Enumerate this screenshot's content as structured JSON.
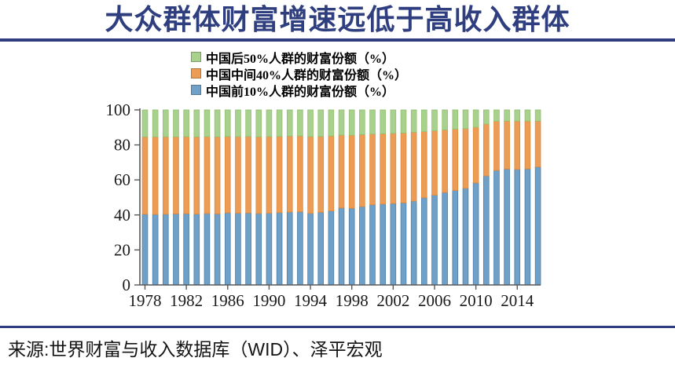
{
  "header": {
    "title": "大众群体财富增速远低于高收入群体",
    "accent_color": "#2F3E7E"
  },
  "footer": {
    "source": "来源:世界财富与收入数据库（WID）、泽平宏观"
  },
  "chart_data": {
    "type": "bar",
    "stacked": true,
    "unit": "%",
    "ylim": [
      0,
      100
    ],
    "yticks": [
      0,
      20,
      40,
      60,
      80,
      100
    ],
    "xticks": [
      1978,
      1982,
      1986,
      1990,
      1994,
      1998,
      2002,
      2006,
      2010,
      2014
    ],
    "grid": false,
    "legend_position": "top",
    "x": [
      1978,
      1979,
      1980,
      1981,
      1982,
      1983,
      1984,
      1985,
      1986,
      1987,
      1988,
      1989,
      1990,
      1991,
      1992,
      1993,
      1994,
      1995,
      1996,
      1997,
      1998,
      1999,
      2000,
      2001,
      2002,
      2003,
      2004,
      2005,
      2006,
      2007,
      2008,
      2009,
      2010,
      2011,
      2012,
      2013,
      2014,
      2015,
      2016
    ],
    "series": [
      {
        "name": "中国前10%人群的财富份额（%）",
        "color": "#6FA0C8",
        "edge": "#4E7FA8",
        "values": [
          40.4,
          40.3,
          40.4,
          40.6,
          40.7,
          40.5,
          40.8,
          40.6,
          41.2,
          41.0,
          41.1,
          40.8,
          41.0,
          41.3,
          41.6,
          41.8,
          40.9,
          41.5,
          42.3,
          44.0,
          43.8,
          44.8,
          45.8,
          46.2,
          46.5,
          46.9,
          47.9,
          49.8,
          51.3,
          52.8,
          54.0,
          55.2,
          58.3,
          62.3,
          65.4,
          66.2,
          66.0,
          66.3,
          67.4
        ]
      },
      {
        "name": "中国中间40%人群的财富份额（%）",
        "color": "#ED9C55",
        "edge": "#DC8A3E",
        "values": [
          44.2,
          44.3,
          44.2,
          44.0,
          44.0,
          44.1,
          43.9,
          44.0,
          43.6,
          43.7,
          43.7,
          43.8,
          43.7,
          43.5,
          43.4,
          43.3,
          43.8,
          43.3,
          42.8,
          41.6,
          41.7,
          41.1,
          40.4,
          40.2,
          40.1,
          39.9,
          39.3,
          37.8,
          36.8,
          35.8,
          35.0,
          34.1,
          31.8,
          29.6,
          28.1,
          27.4,
          27.6,
          27.3,
          26.2
        ]
      },
      {
        "name": "中国后50%人群的财富份额（%）",
        "color": "#A9D18E",
        "edge": "#93C072",
        "values": [
          15.4,
          15.4,
          15.4,
          15.4,
          15.3,
          15.4,
          15.3,
          15.4,
          15.2,
          15.3,
          15.2,
          15.4,
          15.3,
          15.2,
          15.0,
          14.9,
          15.3,
          15.2,
          14.9,
          14.4,
          14.5,
          14.1,
          13.8,
          13.6,
          13.4,
          13.2,
          12.8,
          12.4,
          11.9,
          11.4,
          11.0,
          10.7,
          9.9,
          8.1,
          6.5,
          6.4,
          6.4,
          6.4,
          6.4
        ]
      }
    ],
    "legend": [
      {
        "label": "中国后50%人群的财富份额（%）",
        "color": "#A9D18E"
      },
      {
        "label": "中国中间40%人群的财富份额（%）",
        "color": "#ED9C55"
      },
      {
        "label": "中国前10%人群的财富份额（%）",
        "color": "#6FA0C8"
      }
    ],
    "axis_color": "#595959",
    "tick_label_color": "#1a1a1a"
  }
}
